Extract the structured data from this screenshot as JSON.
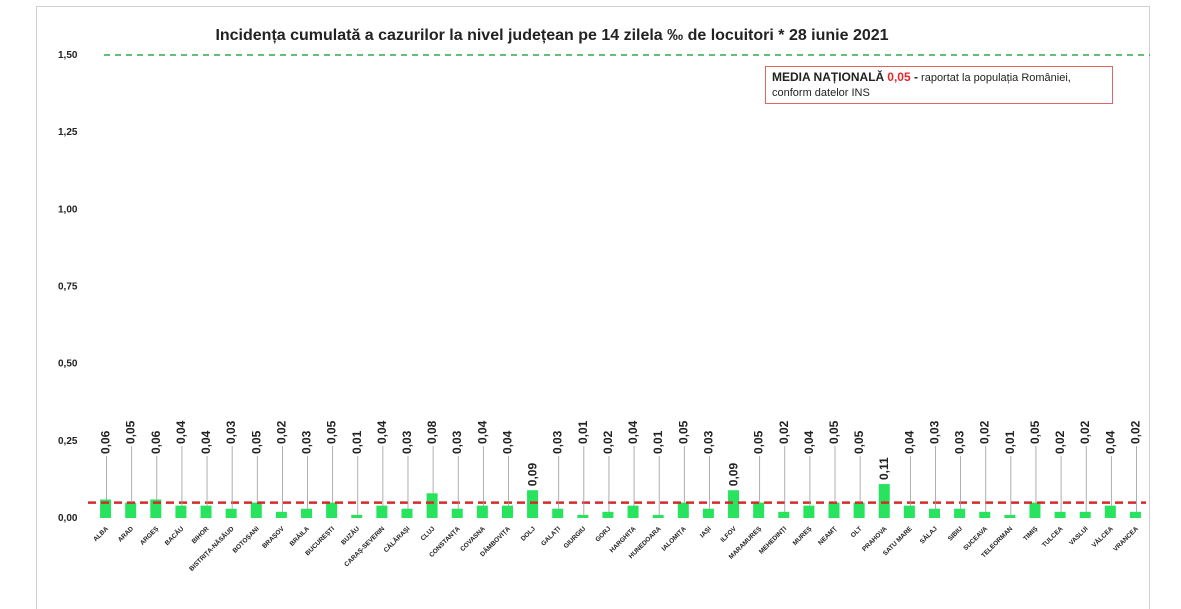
{
  "chart_data": {
    "type": "bar",
    "title": "Incidența cumulată a cazurilor la nivel județean pe 14 zilela ‰ de locuitori *  28 iunie 2021",
    "categories": [
      "ALBA",
      "ARAD",
      "ARGEȘ",
      "BACĂU",
      "BIHOR",
      "BISTRIȚA-NĂSĂUD",
      "BOTOȘANI",
      "BRAȘOV",
      "BRĂILA",
      "BUCUREȘTI",
      "BUZĂU",
      "CARAȘ-SEVERIN",
      "CĂLĂRAȘI",
      "CLUJ",
      "CONSTANȚA",
      "COVASNA",
      "DÂMBOVIȚA",
      "DOLJ",
      "GALAȚI",
      "GIURGIU",
      "GORJ",
      "HARGHITA",
      "HUNEDOARA",
      "IALOMIȚA",
      "IAȘI",
      "ILFOV",
      "MARAMUREȘ",
      "MEHEDINȚI",
      "MUREȘ",
      "NEAMȚ",
      "OLT",
      "PRAHOVA",
      "SATU MARE",
      "SĂLAJ",
      "SIBIU",
      "SUCEAVA",
      "TELEORMAN",
      "TIMIȘ",
      "TULCEA",
      "VASLUI",
      "VÂLCEA",
      "VRANCEA"
    ],
    "values": [
      0.06,
      0.05,
      0.06,
      0.04,
      0.04,
      0.03,
      0.05,
      0.02,
      0.03,
      0.05,
      0.01,
      0.04,
      0.03,
      0.08,
      0.03,
      0.04,
      0.04,
      0.09,
      0.03,
      0.01,
      0.02,
      0.04,
      0.01,
      0.05,
      0.03,
      0.09,
      0.05,
      0.02,
      0.04,
      0.05,
      0.05,
      0.11,
      0.04,
      0.03,
      0.03,
      0.02,
      0.01,
      0.05,
      0.02,
      0.02,
      0.04,
      0.02
    ],
    "value_labels": [
      "0,06",
      "0,05",
      "0,06",
      "0,04",
      "0,04",
      "0,03",
      "0,05",
      "0,02",
      "0,03",
      "0,05",
      "0,01",
      "0,04",
      "0,03",
      "0,08",
      "0,03",
      "0,04",
      "0,04",
      "0,09",
      "0,03",
      "0,01",
      "0,02",
      "0,04",
      "0,01",
      "0,05",
      "0,03",
      "0,09",
      "0,05",
      "0,02",
      "0,04",
      "0,05",
      "0,05",
      "0,11",
      "0,04",
      "0,03",
      "0,03",
      "0,02",
      "0,01",
      "0,05",
      "0,02",
      "0,02",
      "0,04",
      "0,02"
    ],
    "ylim": [
      0,
      1.5
    ],
    "yticks": [
      0,
      0.25,
      0.5,
      0.75,
      1.0,
      1.25,
      1.5
    ],
    "ytick_labels": [
      "0,00",
      "0,25",
      "0,50",
      "0,75",
      "1,00",
      "1,25",
      "1,50"
    ],
    "threshold_line": {
      "value": 1.5,
      "color": "#2eaa4a"
    },
    "national_average_line": {
      "value": 0.05,
      "color": "#d42a2a"
    },
    "bar_color": "#27e35e",
    "grid": false
  },
  "note": {
    "bold_label": "MEDIA NAȚIONALĂ",
    "value": "0,05",
    "dash": " -",
    "rest_line1": " raportat la populația României,",
    "line2": "conform datelor INS",
    "value_color": "#e8262b",
    "border_color": "#e06666"
  }
}
